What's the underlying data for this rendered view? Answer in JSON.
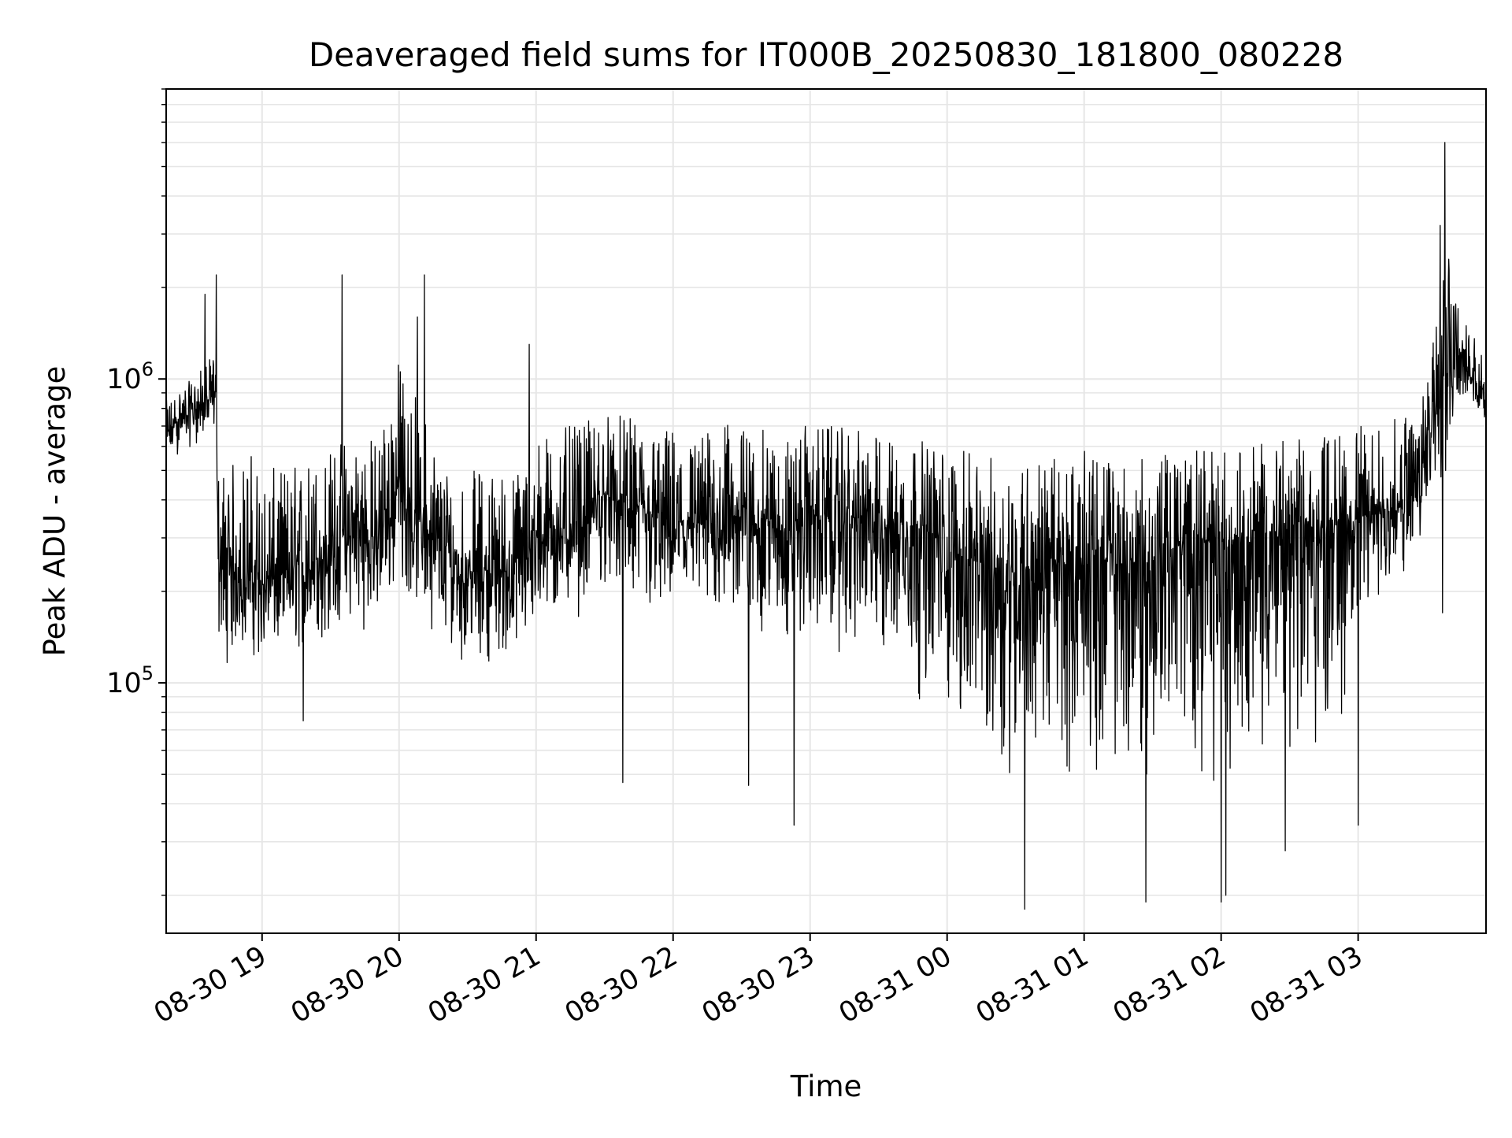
{
  "chart_data": {
    "type": "line",
    "title": "Deaveraged field sums for IT000B_20250830_181800_080228",
    "xlabel": "Time",
    "ylabel": "Peak ADU - average",
    "y_scale": "log",
    "ylim": [
      15000,
      9000000
    ],
    "xlim": [
      "2025-08-30 18:18",
      "2025-08-31 03:56"
    ],
    "grid": true,
    "x_ticks": [
      {
        "t": "2025-08-30 19:00",
        "label": "08-30 19"
      },
      {
        "t": "2025-08-30 20:00",
        "label": "08-30 20"
      },
      {
        "t": "2025-08-30 21:00",
        "label": "08-30 21"
      },
      {
        "t": "2025-08-30 22:00",
        "label": "08-30 22"
      },
      {
        "t": "2025-08-30 23:00",
        "label": "08-30 23"
      },
      {
        "t": "2025-08-31 00:00",
        "label": "08-31 00"
      },
      {
        "t": "2025-08-31 01:00",
        "label": "08-31 01"
      },
      {
        "t": "2025-08-31 02:00",
        "label": "08-31 02"
      },
      {
        "t": "2025-08-31 03:00",
        "label": "08-31 03"
      }
    ],
    "y_ticks": [
      {
        "value": 100000,
        "base": "10",
        "exp": "5"
      },
      {
        "value": 1000000,
        "base": "10",
        "exp": "6"
      }
    ],
    "series": [
      {
        "color": "#000000",
        "x": [
          "2025-08-30 18:18",
          "2025-08-30 18:24",
          "2025-08-30 18:30",
          "2025-08-30 18:36",
          "2025-08-30 18:40",
          "2025-08-30 18:41",
          "2025-08-30 18:45",
          "2025-08-30 18:50",
          "2025-08-30 18:55",
          "2025-08-30 19:00",
          "2025-08-30 19:10",
          "2025-08-30 19:20",
          "2025-08-30 19:30",
          "2025-08-30 19:35",
          "2025-08-30 19:40",
          "2025-08-30 19:50",
          "2025-08-30 20:00",
          "2025-08-30 20:10",
          "2025-08-30 20:20",
          "2025-08-30 20:30",
          "2025-08-30 20:40",
          "2025-08-30 20:50",
          "2025-08-30 21:00",
          "2025-08-30 21:10",
          "2025-08-30 21:20",
          "2025-08-30 21:30",
          "2025-08-30 21:40",
          "2025-08-30 21:50",
          "2025-08-30 22:00",
          "2025-08-30 22:10",
          "2025-08-30 22:20",
          "2025-08-30 22:30",
          "2025-08-30 22:40",
          "2025-08-30 22:50",
          "2025-08-30 23:00",
          "2025-08-30 23:10",
          "2025-08-30 23:20",
          "2025-08-30 23:30",
          "2025-08-30 23:40",
          "2025-08-30 23:50",
          "2025-08-31 00:00",
          "2025-08-31 00:10",
          "2025-08-31 00:20",
          "2025-08-31 00:30",
          "2025-08-31 00:40",
          "2025-08-31 00:50",
          "2025-08-31 01:00",
          "2025-08-31 01:10",
          "2025-08-31 01:20",
          "2025-08-31 01:30",
          "2025-08-31 01:40",
          "2025-08-31 01:50",
          "2025-08-31 02:00",
          "2025-08-31 02:10",
          "2025-08-31 02:20",
          "2025-08-31 02:30",
          "2025-08-31 02:40",
          "2025-08-31 02:50",
          "2025-08-31 03:00",
          "2025-08-31 03:10",
          "2025-08-31 03:20",
          "2025-08-31 03:27",
          "2025-08-31 03:33",
          "2025-08-31 03:38",
          "2025-08-31 03:42",
          "2025-08-31 03:46",
          "2025-08-31 03:50",
          "2025-08-31 03:56"
        ],
        "y": [
          650000,
          750000,
          800000,
          850000,
          900000,
          250000,
          220000,
          240000,
          230000,
          210000,
          230000,
          240000,
          280000,
          300000,
          310000,
          300000,
          450000,
          330000,
          260000,
          230000,
          240000,
          230000,
          300000,
          320000,
          330000,
          420000,
          380000,
          350000,
          340000,
          330000,
          360000,
          350000,
          340000,
          320000,
          360000,
          340000,
          350000,
          340000,
          330000,
          320000,
          280000,
          250000,
          240000,
          230000,
          250000,
          240000,
          260000,
          250000,
          240000,
          250000,
          280000,
          290000,
          290000,
          300000,
          310000,
          320000,
          320000,
          330000,
          350000,
          370000,
          380000,
          450000,
          900000,
          1800000,
          1300000,
          1100000,
          1000000,
          900000
        ],
        "y_low": [
          500000,
          550000,
          600000,
          600000,
          650000,
          130000,
          110000,
          120000,
          120000,
          110000,
          115000,
          120000,
          130000,
          140000,
          150000,
          140000,
          200000,
          160000,
          130000,
          110000,
          115000,
          110000,
          130000,
          150000,
          160000,
          200000,
          150000,
          140000,
          150000,
          140000,
          150000,
          140000,
          130000,
          120000,
          130000,
          120000,
          110000,
          100000,
          90000,
          80000,
          70000,
          60000,
          50000,
          45000,
          50000,
          45000,
          50000,
          45000,
          42000,
          45000,
          48000,
          46000,
          45000,
          48000,
          50000,
          55000,
          52000,
          50000,
          150000,
          180000,
          200000,
          250000,
          450000,
          350000,
          700000,
          800000,
          750000,
          650000
        ],
        "y_high": [
          850000,
          950000,
          1000000,
          1150000,
          1200000,
          500000,
          550000,
          520000,
          600000,
          500000,
          520000,
          560000,
          600000,
          650000,
          700000,
          650000,
          1200000,
          800000,
          550000,
          500000,
          520000,
          500000,
          650000,
          700000,
          700000,
          800000,
          750000,
          700000,
          700000,
          650000,
          720000,
          700000,
          680000,
          650000,
          720000,
          700000,
          680000,
          660000,
          650000,
          630000,
          600000,
          570000,
          560000,
          550000,
          560000,
          550000,
          580000,
          560000,
          540000,
          550000,
          580000,
          590000,
          590000,
          600000,
          620000,
          640000,
          650000,
          680000,
          700000,
          720000,
          760000,
          900000,
          1800000,
          3500000,
          2500000,
          1600000,
          1400000,
          1200000
        ],
        "spikes": [
          {
            "t": "2025-08-30 18:40",
            "value": 2200000
          },
          {
            "t": "2025-08-30 18:35",
            "value": 1900000
          },
          {
            "t": "2025-08-30 19:35",
            "value": 2200000
          },
          {
            "t": "2025-08-30 20:11",
            "value": 2200000
          },
          {
            "t": "2025-08-30 20:08",
            "value": 1600000
          },
          {
            "t": "2025-08-30 20:57",
            "value": 1300000
          },
          {
            "t": "2025-08-31 03:38",
            "value": 6000000
          },
          {
            "t": "2025-08-31 03:36",
            "value": 3200000
          },
          {
            "t": "2025-08-30 19:18",
            "value": 75000
          },
          {
            "t": "2025-08-30 21:38",
            "value": 47000
          },
          {
            "t": "2025-08-30 22:33",
            "value": 46000
          },
          {
            "t": "2025-08-30 22:53",
            "value": 34000
          },
          {
            "t": "2025-08-31 00:34",
            "value": 18000
          },
          {
            "t": "2025-08-31 01:27",
            "value": 19000
          },
          {
            "t": "2025-08-31 02:00",
            "value": 19000
          },
          {
            "t": "2025-08-31 02:02",
            "value": 20000
          },
          {
            "t": "2025-08-31 02:28",
            "value": 28000
          },
          {
            "t": "2025-08-31 03:00",
            "value": 34000
          },
          {
            "t": "2025-08-31 03:37",
            "value": 170000
          }
        ]
      }
    ]
  }
}
